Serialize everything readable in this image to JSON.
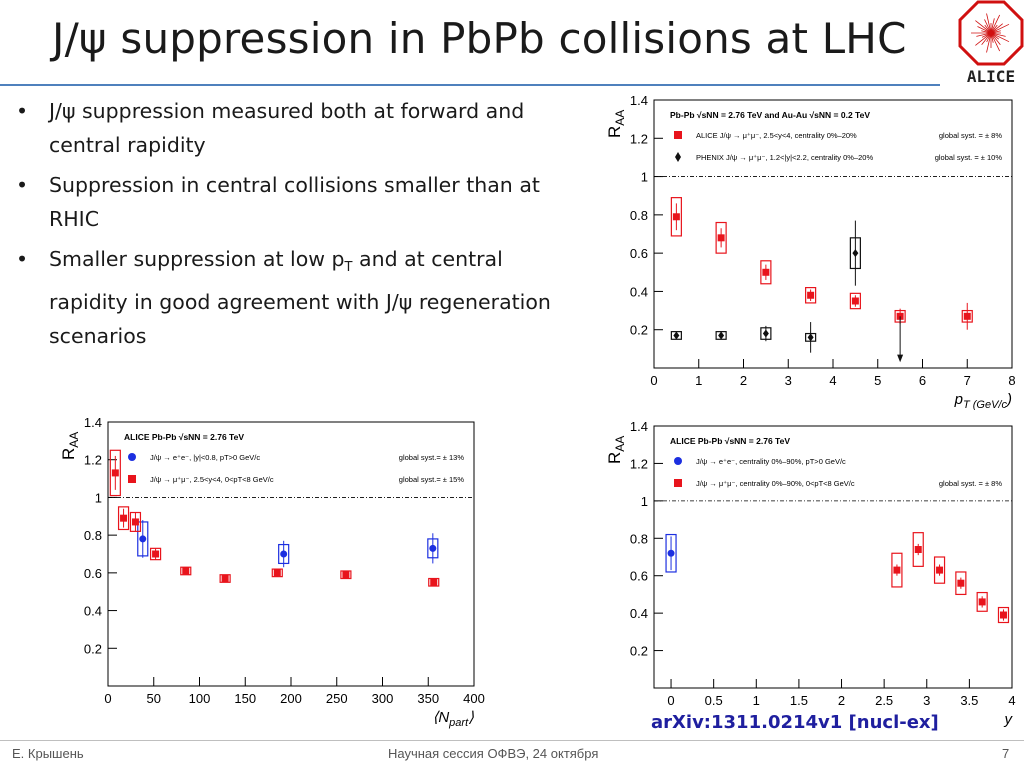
{
  "slide": {
    "title": "J/ψ suppression in PbPb collisions at LHC",
    "bullets": [
      {
        "text": "J/ψ suppression measured both at forward and central rapidity"
      },
      {
        "text": "Suppression in central collisions smaller than at RHIC"
      },
      {
        "pre": "Smaller suppression at low p",
        "sub": "T",
        "post": " and at central rapidity in good agreement with J/ψ regeneration scenarios"
      }
    ],
    "logo_text": "ALICE",
    "citation": "arXiv:1311.0214v1 [nucl-ex]",
    "footer": {
      "author": "Е. Крышень",
      "event": "Научная сессия ОФВЭ, 24 октября",
      "page": "7"
    }
  },
  "colors": {
    "alice_red": "#e8141c",
    "phenix_black": "#111111",
    "central_blue": "#1c2fe0",
    "title_rule": "#4f81bd",
    "citation": "#1f1f9f"
  },
  "chart_data": [
    {
      "type": "scatter",
      "ylabel": "R_AA",
      "xlabel": "p_T (GeV/c)",
      "xlim": [
        0,
        8
      ],
      "ylim": [
        0,
        1.4
      ],
      "xticks": [
        0,
        1,
        2,
        3,
        4,
        5,
        6,
        7,
        8
      ],
      "yticks": [
        0.2,
        0.4,
        0.6,
        0.8,
        1,
        1.2,
        1.4
      ],
      "reference_line": 1,
      "header": "Pb-Pb √sNN = 2.76 TeV and Au-Au √sNN = 0.2 TeV",
      "series": [
        {
          "name": "ALICE J/ψ → μ⁺μ⁻, 2.5<y<4, centrality 0%–20%",
          "syst": "global syst. = ± 8%",
          "color": "#e8141c",
          "marker": "square",
          "x": [
            0.5,
            1.5,
            2.5,
            3.5,
            4.5,
            5.5,
            7
          ],
          "y": [
            0.79,
            0.68,
            0.5,
            0.38,
            0.35,
            0.27,
            0.27
          ],
          "stat": [
            0.07,
            0.05,
            0.04,
            0.03,
            0.03,
            0.04,
            0.07
          ],
          "sys": [
            0.1,
            0.08,
            0.06,
            0.04,
            0.04,
            0.03,
            0.03
          ]
        },
        {
          "name": "PHENIX J/ψ → μ⁺μ⁻, 1.2<|y|<2.2, centrality 0%–20%",
          "syst": "global syst. = ± 10%",
          "color": "#111111",
          "marker": "diamond",
          "x": [
            0.5,
            1.5,
            2.5,
            3.5,
            4.5,
            5.5
          ],
          "y": [
            0.17,
            0.17,
            0.18,
            0.16,
            0.6,
            0.27
          ],
          "stat": [
            0.02,
            0.02,
            0.04,
            0.08,
            0.17,
            0.0
          ],
          "sys": [
            0.02,
            0.02,
            0.03,
            0.02,
            0.08,
            0.0
          ],
          "upper_limit_index": 5
        }
      ]
    },
    {
      "type": "scatter",
      "ylabel": "R_AA",
      "xlabel": "⟨N_part⟩",
      "xlim": [
        0,
        400
      ],
      "ylim": [
        0,
        1.4
      ],
      "xticks": [
        0,
        50,
        100,
        150,
        200,
        250,
        300,
        350,
        400
      ],
      "yticks": [
        0.2,
        0.4,
        0.6,
        0.8,
        1,
        1.2,
        1.4
      ],
      "reference_line": 1,
      "header": "ALICE Pb-Pb √sNN = 2.76 TeV",
      "series": [
        {
          "name": "J/ψ → e⁺e⁻, |y|<0.8, pT>0 GeV/c",
          "syst": "global syst.= ± 13%",
          "color": "#1c2fe0",
          "marker": "circle",
          "x": [
            38,
            192,
            355
          ],
          "y": [
            0.78,
            0.7,
            0.73
          ],
          "stat": [
            0.1,
            0.07,
            0.08
          ],
          "sys": [
            0.09,
            0.05,
            0.05
          ]
        },
        {
          "name": "J/ψ → μ⁺μ⁻, 2.5<y<4, 0<pT<8 GeV/c",
          "syst": "global syst.= ± 15%",
          "color": "#e8141c",
          "marker": "square",
          "x": [
            8,
            17,
            30,
            52,
            85,
            128,
            185,
            260,
            356
          ],
          "y": [
            1.13,
            0.89,
            0.87,
            0.7,
            0.61,
            0.57,
            0.6,
            0.59,
            0.55
          ],
          "stat": [
            0.09,
            0.05,
            0.05,
            0.03,
            0.02,
            0.02,
            0.02,
            0.02,
            0.02
          ],
          "sys": [
            0.12,
            0.06,
            0.05,
            0.03,
            0.02,
            0.02,
            0.02,
            0.02,
            0.02
          ]
        }
      ]
    },
    {
      "type": "scatter",
      "ylabel": "R_AA",
      "xlabel": "y",
      "xlim": [
        -0.2,
        4
      ],
      "ylim": [
        0,
        1.4
      ],
      "xticks": [
        0,
        0.5,
        1,
        1.5,
        2,
        2.5,
        3,
        3.5,
        4
      ],
      "yticks": [
        0.2,
        0.4,
        0.6,
        0.8,
        1,
        1.2,
        1.4
      ],
      "reference_line": 1,
      "header": "ALICE Pb-Pb √sNN = 2.76 TeV",
      "series": [
        {
          "name": "J/ψ → e⁺e⁻, centrality 0%–90%, pT>0 GeV/c",
          "syst": "",
          "color": "#1c2fe0",
          "marker": "circle",
          "x": [
            0
          ],
          "y": [
            0.72
          ],
          "stat": [
            0.09
          ],
          "sys": [
            0.1
          ]
        },
        {
          "name": "J/ψ → μ⁺μ⁻, centrality 0%–90%, 0<pT<8 GeV/c",
          "syst": "global syst. = ± 8%",
          "color": "#e8141c",
          "marker": "square",
          "x": [
            2.65,
            2.9,
            3.15,
            3.4,
            3.65,
            3.9
          ],
          "y": [
            0.63,
            0.74,
            0.63,
            0.56,
            0.46,
            0.39
          ],
          "stat": [
            0.03,
            0.03,
            0.03,
            0.03,
            0.03,
            0.03
          ],
          "sys": [
            0.09,
            0.09,
            0.07,
            0.06,
            0.05,
            0.04
          ]
        }
      ]
    }
  ]
}
